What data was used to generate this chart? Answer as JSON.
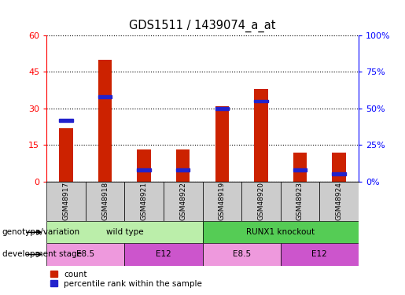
{
  "title": "GDS1511 / 1439074_a_at",
  "samples": [
    "GSM48917",
    "GSM48918",
    "GSM48921",
    "GSM48922",
    "GSM48919",
    "GSM48920",
    "GSM48923",
    "GSM48924"
  ],
  "count_values": [
    22,
    50,
    13,
    13,
    31,
    38,
    12,
    12
  ],
  "percentile_values": [
    42,
    58,
    8,
    8,
    50,
    55,
    8,
    5
  ],
  "ylim_left": [
    0,
    60
  ],
  "ylim_right": [
    0,
    100
  ],
  "yticks_left": [
    0,
    15,
    30,
    45,
    60
  ],
  "yticks_right": [
    0,
    25,
    50,
    75,
    100
  ],
  "bar_color": "#cc2200",
  "percentile_color": "#2222cc",
  "genotype_groups": [
    {
      "label": "wild type",
      "start": 0,
      "end": 4,
      "color": "#bbeeaa"
    },
    {
      "label": "RUNX1 knockout",
      "start": 4,
      "end": 8,
      "color": "#55cc55"
    }
  ],
  "stage_groups": [
    {
      "label": "E8.5",
      "start": 0,
      "end": 2,
      "color": "#ee99dd"
    },
    {
      "label": "E12",
      "start": 2,
      "end": 4,
      "color": "#cc55cc"
    },
    {
      "label": "E8.5",
      "start": 4,
      "end": 6,
      "color": "#ee99dd"
    },
    {
      "label": "E12",
      "start": 6,
      "end": 8,
      "color": "#cc55cc"
    }
  ],
  "legend_count_label": "count",
  "legend_percentile_label": "percentile rank within the sample",
  "genotype_label": "genotype/variation",
  "stage_label": "development stage",
  "bar_width": 0.35,
  "title_fontsize": 10.5,
  "annotation_fontsize": 7.5,
  "sample_fontsize": 6.5,
  "legend_fontsize": 7.5,
  "axis_fontsize": 8
}
